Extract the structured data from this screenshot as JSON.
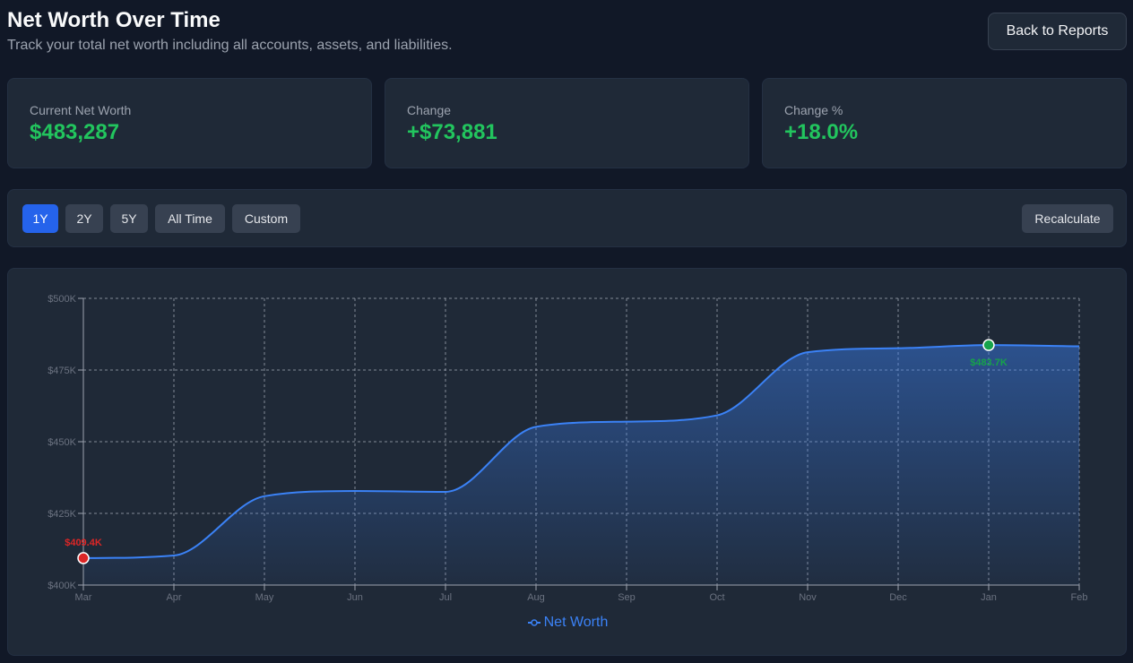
{
  "header": {
    "title": "Net Worth Over Time",
    "subtitle": "Track your total net worth including all accounts, assets, and liabilities.",
    "back_label": "Back to Reports"
  },
  "summary": [
    {
      "label": "Current Net Worth",
      "value": "$483,287"
    },
    {
      "label": "Change",
      "value": "+$73,881"
    },
    {
      "label": "Change %",
      "value": "+18.0%"
    }
  ],
  "ranges": {
    "options": [
      "1Y",
      "2Y",
      "5Y",
      "All Time",
      "Custom"
    ],
    "selected": "1Y",
    "recalculate_label": "Recalculate"
  },
  "colors": {
    "line": "#3b82f6",
    "positive": "#22c55e",
    "min_marker": "#dc2626",
    "max_marker": "#16a34a"
  },
  "chart_data": {
    "type": "area",
    "categories": [
      "Mar",
      "Apr",
      "May",
      "Jun",
      "Jul",
      "Aug",
      "Sep",
      "Oct",
      "Nov",
      "Dec",
      "Jan",
      "Feb"
    ],
    "series": [
      {
        "name": "Net Worth",
        "values": [
          409400,
          410300,
          431000,
          432800,
          432500,
          455200,
          457000,
          459200,
          481200,
          482600,
          483700,
          483287
        ]
      }
    ],
    "ylim": [
      400000,
      500000
    ],
    "yticks": [
      400000,
      425000,
      450000,
      475000,
      500000
    ],
    "ytick_labels": [
      "$400K",
      "$425K",
      "$450K",
      "$475K",
      "$500K"
    ],
    "grid": true,
    "legend_position": "bottom",
    "annotations": [
      {
        "category": "Mar",
        "value": 409400,
        "label": "$409.4K",
        "kind": "min"
      },
      {
        "category": "Jan",
        "value": 483700,
        "label": "$483.7K",
        "kind": "max"
      }
    ]
  }
}
